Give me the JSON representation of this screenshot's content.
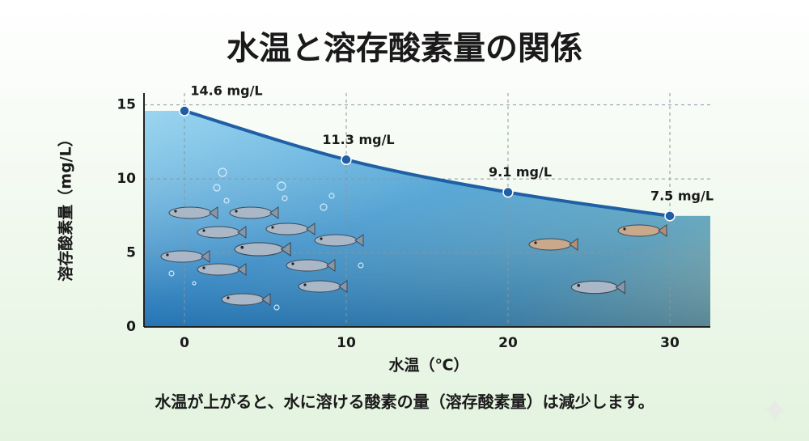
{
  "chart_data": {
    "type": "line",
    "title": "水温と溶存酸素量の関係",
    "x_label": "水温（℃）",
    "y_label": "溶存酸素量（mg/L）",
    "caption": "水温が上がると、水に溶ける酸素の量（溶存酸素量）は減少します。",
    "x": [
      0,
      10,
      20,
      30
    ],
    "series": [
      {
        "color": "#1f5fa6",
        "values": [
          14.6,
          11.3,
          9.1,
          7.5
        ],
        "value_labels": [
          "14.6 mg/L",
          "11.3 mg/L",
          "9.1 mg/L",
          "7.5 mg/L"
        ]
      }
    ],
    "xlim": [
      -2.5,
      32.5
    ],
    "ylim": [
      0,
      15.8
    ],
    "xticks": [
      0,
      10,
      20,
      30
    ],
    "yticks": [
      0,
      5,
      10,
      15
    ],
    "grid": true
  }
}
